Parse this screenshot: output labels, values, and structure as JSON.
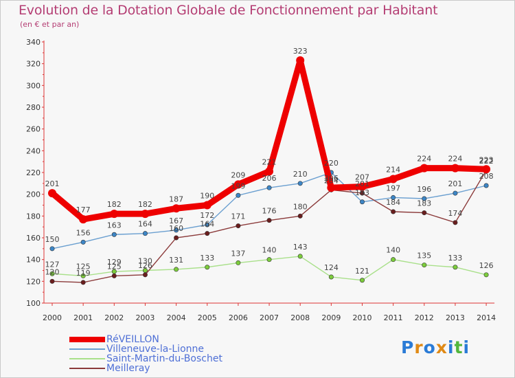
{
  "chart_data": {
    "type": "line",
    "title": "Evolution de la Dotation Globale de Fonctionnement par Habitant",
    "subtitle": "(en € et par an)",
    "xlabel": "",
    "ylabel": "",
    "ylim": [
      100,
      340
    ],
    "yticks": [
      100,
      120,
      140,
      160,
      180,
      200,
      220,
      240,
      260,
      280,
      300,
      320,
      340
    ],
    "grid": false,
    "legend_position": "bottom-left",
    "categories": [
      "2000",
      "2001",
      "2002",
      "2003",
      "2004",
      "2005",
      "2006",
      "2007",
      "2008",
      "2009",
      "2010",
      "2011",
      "2012",
      "2013",
      "2014"
    ],
    "series": [
      {
        "name": "RéVEILLON",
        "color": "#ee0000",
        "bold": true,
        "values": [
          201,
          177,
          182,
          182,
          187,
          190,
          209,
          221,
          323,
          206,
          207,
          214,
          224,
          224,
          223
        ]
      },
      {
        "name": "Villeneuve-la-Lionne",
        "color": "#6a9fd0",
        "dot": "#3d86c6",
        "values": [
          150,
          156,
          163,
          164,
          167,
          172,
          199,
          206,
          210,
          220,
          193,
          197,
          196,
          201,
          208
        ]
      },
      {
        "name": "Saint-Martin-du-Boschet",
        "color": "#a9e08a",
        "dot": "#7ccc3c",
        "values": [
          127,
          125,
          129,
          130,
          131,
          133,
          137,
          140,
          143,
          124,
          121,
          140,
          135,
          133,
          126
        ]
      },
      {
        "name": "Meilleray",
        "color": "#8b3a3a",
        "dot": "#6a1e1e",
        "values": [
          120,
          119,
          125,
          126,
          160,
          164,
          171,
          176,
          180,
          204,
          201,
          184,
          183,
          174,
          222
        ]
      }
    ]
  },
  "logo": {
    "text": "Proxiti",
    "colors": [
      "#2a7bd6",
      "#e08a16",
      "#2a7bd6",
      "#e08a16",
      "#2a7bd6",
      "#52b63c",
      "#2a7bd6"
    ]
  }
}
